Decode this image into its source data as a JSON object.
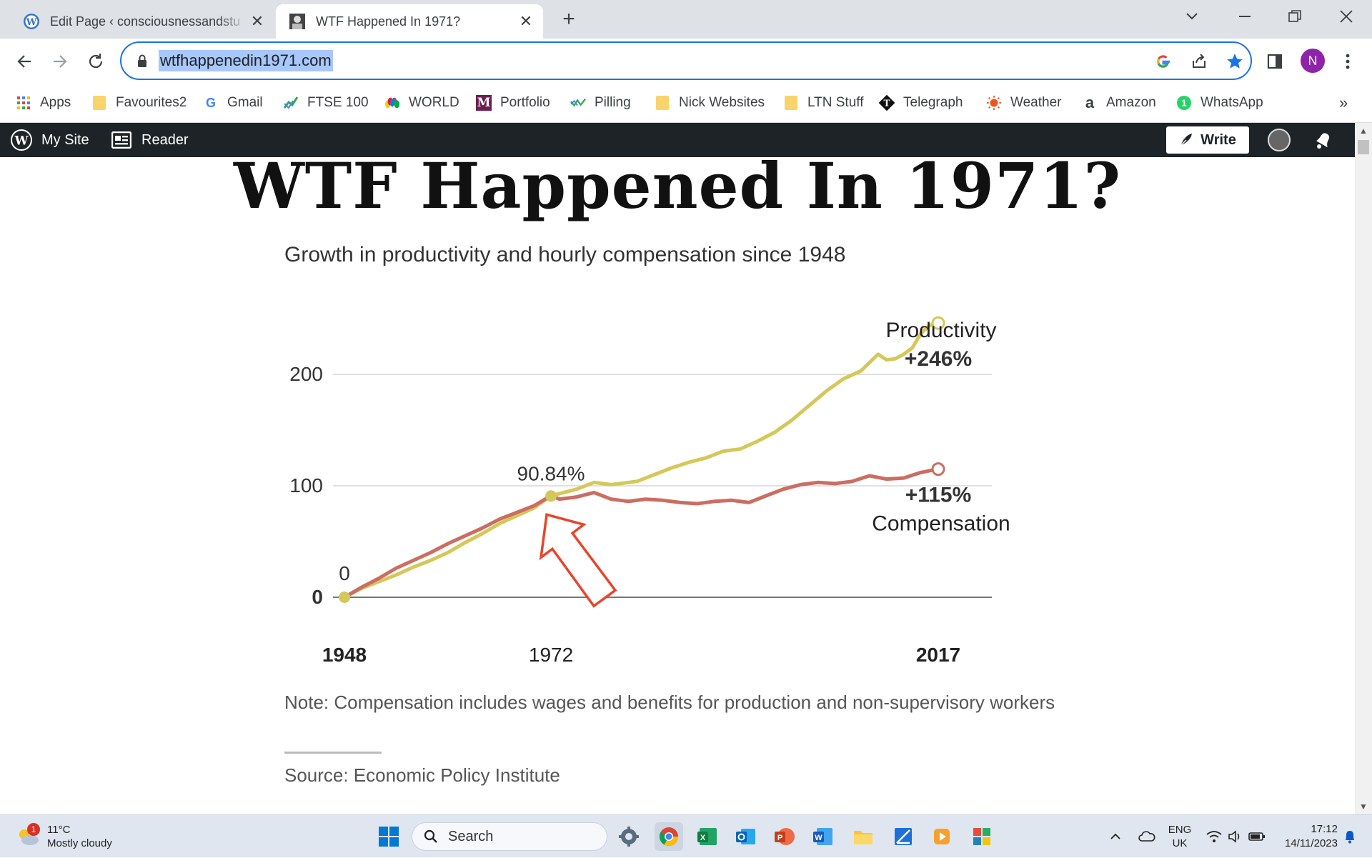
{
  "browser": {
    "tabs": [
      {
        "title": "Edit Page ‹ consciousnessandstu",
        "favicon": "wordpress-icon",
        "active": false
      },
      {
        "title": "WTF Happened In 1971?",
        "favicon": "page-icon",
        "active": true
      }
    ],
    "url": "wtfhappenedin1971.com",
    "profile_initial": "N",
    "accent_color": "#1a73e8"
  },
  "bookmarks": [
    {
      "label": "Apps",
      "icon": "apps-grid-icon"
    },
    {
      "label": "Favourites2",
      "icon": "folder-icon"
    },
    {
      "label": "Gmail",
      "icon": "google-icon"
    },
    {
      "label": "FTSE 100",
      "icon": "chart-icon"
    },
    {
      "label": "WORLD",
      "icon": "nbc-icon"
    },
    {
      "label": "Portfolio",
      "icon": "m-icon"
    },
    {
      "label": "Pilling",
      "icon": "trend-icon"
    },
    {
      "label": "Nick Websites",
      "icon": "folder-icon"
    },
    {
      "label": "LTN Stuff",
      "icon": "folder-icon"
    },
    {
      "label": "Telegraph",
      "icon": "telegraph-icon"
    },
    {
      "label": "Weather",
      "icon": "weather-icon"
    },
    {
      "label": "Amazon",
      "icon": "amazon-icon"
    },
    {
      "label": "WhatsApp",
      "icon": "whatsapp-icon"
    }
  ],
  "bookmarks_overflow": "»",
  "wp_admin_bar": {
    "my_site": "My Site",
    "reader": "Reader",
    "write": "Write"
  },
  "page": {
    "title": "WTF Happened In 1971?",
    "note": "Note: Compensation includes wages and benefits for production and non-supervisory workers",
    "source": "Source: Economic Policy Institute"
  },
  "chart_data": {
    "type": "line",
    "title": "Growth in productivity and hourly compensation since 1948",
    "x_ticks": [
      "1948",
      "1972",
      "2017"
    ],
    "y_ticks": [
      "0",
      "100",
      "200"
    ],
    "xlim": [
      1948,
      2017
    ],
    "ylim": [
      0,
      250
    ],
    "grid": true,
    "series": [
      {
        "name": "Productivity",
        "color": "#d4c85a",
        "end_label": "+246%",
        "points": [
          [
            1948,
            0
          ],
          [
            1950,
            8
          ],
          [
            1952,
            14
          ],
          [
            1954,
            20
          ],
          [
            1956,
            27
          ],
          [
            1958,
            33
          ],
          [
            1960,
            40
          ],
          [
            1962,
            49
          ],
          [
            1964,
            57
          ],
          [
            1966,
            66
          ],
          [
            1968,
            73
          ],
          [
            1970,
            80
          ],
          [
            1972,
            91
          ],
          [
            1973,
            93
          ],
          [
            1975,
            97
          ],
          [
            1977,
            103
          ],
          [
            1979,
            101
          ],
          [
            1980,
            102
          ],
          [
            1982,
            104
          ],
          [
            1984,
            110
          ],
          [
            1986,
            116
          ],
          [
            1988,
            121
          ],
          [
            1990,
            125
          ],
          [
            1992,
            131
          ],
          [
            1994,
            133
          ],
          [
            1996,
            140
          ],
          [
            1998,
            148
          ],
          [
            2000,
            159
          ],
          [
            2002,
            172
          ],
          [
            2004,
            185
          ],
          [
            2006,
            196
          ],
          [
            2008,
            203
          ],
          [
            2010,
            218
          ],
          [
            2011,
            213
          ],
          [
            2012,
            214
          ],
          [
            2013,
            218
          ],
          [
            2014,
            224
          ],
          [
            2015,
            237
          ],
          [
            2016,
            244
          ],
          [
            2017,
            246
          ]
        ]
      },
      {
        "name": "Compensation",
        "color": "#cc6d62",
        "end_label": "+115%",
        "points": [
          [
            1948,
            0
          ],
          [
            1950,
            9
          ],
          [
            1952,
            17
          ],
          [
            1954,
            26
          ],
          [
            1956,
            33
          ],
          [
            1958,
            40
          ],
          [
            1960,
            48
          ],
          [
            1962,
            55
          ],
          [
            1964,
            62
          ],
          [
            1966,
            70
          ],
          [
            1968,
            76
          ],
          [
            1970,
            82
          ],
          [
            1972,
            91
          ],
          [
            1973,
            88
          ],
          [
            1975,
            90
          ],
          [
            1977,
            94
          ],
          [
            1979,
            88
          ],
          [
            1981,
            86
          ],
          [
            1983,
            88
          ],
          [
            1985,
            87
          ],
          [
            1987,
            85
          ],
          [
            1989,
            84
          ],
          [
            1991,
            86
          ],
          [
            1993,
            87
          ],
          [
            1995,
            85
          ],
          [
            1997,
            91
          ],
          [
            1999,
            97
          ],
          [
            2001,
            101
          ],
          [
            2003,
            103
          ],
          [
            2005,
            102
          ],
          [
            2007,
            104
          ],
          [
            2009,
            109
          ],
          [
            2011,
            106
          ],
          [
            2013,
            107
          ],
          [
            2015,
            112
          ],
          [
            2017,
            115
          ]
        ]
      }
    ],
    "annotations": [
      {
        "text": "0",
        "x": 1948,
        "y": 0
      },
      {
        "text": "90.84%",
        "x": 1972,
        "y": 90.84
      }
    ],
    "series_labels": {
      "productivity": "Productivity",
      "compensation": "Compensation"
    },
    "arrow": {
      "points_to": "1972",
      "color": "#e8452c"
    }
  },
  "taskbar": {
    "weather_temp": "11°C",
    "weather_desc": "Mostly cloudy",
    "weather_badge": "1",
    "search_placeholder": "Search",
    "language_top": "ENG",
    "language_bottom": "UK",
    "time": "17:12",
    "date": "14/11/2023",
    "apps": [
      "windows-start-icon",
      "settings-icon",
      "chrome-icon",
      "excel-icon",
      "outlook-icon",
      "powerpoint-icon",
      "word-icon",
      "file-explorer-icon",
      "snipping-tool-icon",
      "media-player-icon",
      "paint-icon"
    ]
  }
}
